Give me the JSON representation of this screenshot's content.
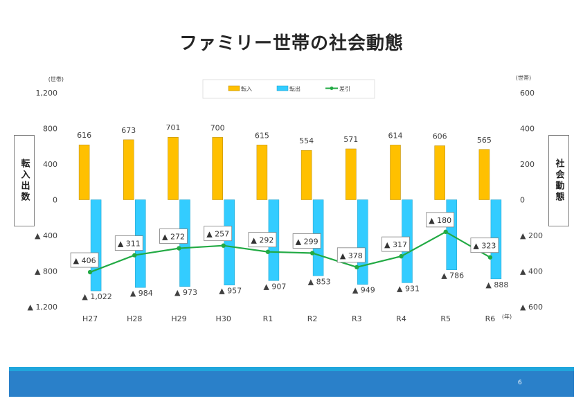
{
  "page": {
    "title": "ファミリー世帯の社会動態",
    "page_number": "6",
    "left_box": "転入出数",
    "right_box": "社会動態"
  },
  "colors": {
    "in_bar": "#ffc000",
    "out_bar": "#33ccff",
    "net_line": "#22aa44",
    "footer": "#2a80c9",
    "footer_stripe": "#20a6dc"
  },
  "chart_data": {
    "type": "bar",
    "categories": [
      "H27",
      "H28",
      "H29",
      "H30",
      "R1",
      "R2",
      "R3",
      "R4",
      "R5",
      "R6"
    ],
    "series": [
      {
        "name": "転入",
        "type": "bar",
        "axis": "left",
        "values": [
          616,
          673,
          701,
          700,
          615,
          554,
          571,
          614,
          606,
          565
        ]
      },
      {
        "name": "転出",
        "type": "bar",
        "axis": "left",
        "values": [
          -1022,
          -984,
          -973,
          -957,
          -907,
          -853,
          -949,
          -931,
          -786,
          -888
        ]
      },
      {
        "name": "差引",
        "type": "line",
        "axis": "right",
        "values": [
          -406,
          -311,
          -272,
          -257,
          -292,
          -299,
          -378,
          -317,
          -180,
          -323
        ]
      }
    ],
    "in_labels": [
      "616",
      "673",
      "701",
      "700",
      "615",
      "554",
      "571",
      "614",
      "606",
      "565"
    ],
    "out_labels": [
      "▲ 1,022",
      "▲ 984",
      "▲ 973",
      "▲ 957",
      "▲ 907",
      "▲ 853",
      "▲ 949",
      "▲ 931",
      "▲ 786",
      "▲ 888"
    ],
    "net_labels": [
      "▲ 406",
      "▲ 311",
      "▲ 272",
      "▲ 257",
      "▲ 292",
      "▲ 299",
      "▲ 378",
      "▲ 317",
      "▲ 180",
      "▲ 323"
    ],
    "left_axis": {
      "unit": "(世帯)",
      "ylim": [
        -1200,
        1200
      ],
      "ticks": [
        1200,
        800,
        400,
        0,
        -400,
        -800,
        -1200
      ],
      "tick_labels": [
        "1,200",
        "800",
        "400",
        "0",
        "▲ 400",
        "▲ 800",
        "▲ 1,200"
      ]
    },
    "right_axis": {
      "unit": "(世帯)",
      "ylim": [
        -600,
        600
      ],
      "ticks": [
        600,
        400,
        200,
        0,
        -200,
        -400,
        -600
      ],
      "tick_labels": [
        "600",
        "400",
        "200",
        "0",
        "▲ 200",
        "▲ 400",
        "▲ 600"
      ]
    },
    "x_unit": "(年)",
    "legend": {
      "position": "top",
      "items": [
        "転入",
        "転出",
        "差引"
      ]
    },
    "grid": false
  }
}
